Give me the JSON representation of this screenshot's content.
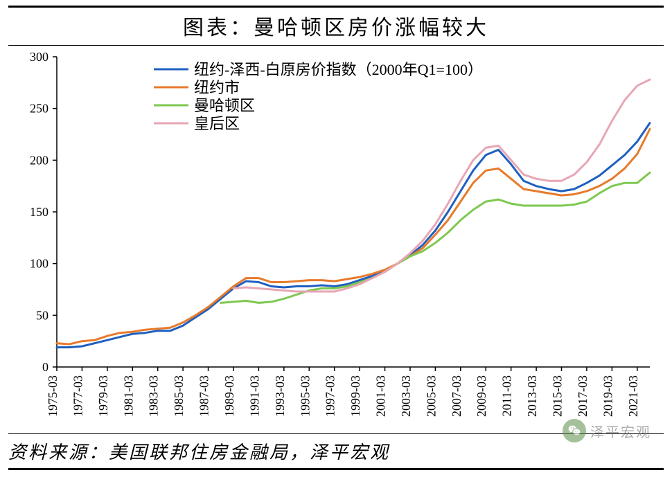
{
  "title": "图表：曼哈顿区房价涨幅较大",
  "source": "资料来源：美国联邦住房金融局，泽平宏观",
  "watermark": "泽平宏观",
  "chart": {
    "type": "line",
    "background_color": "#ffffff",
    "axis_color": "#000000",
    "tick_font_size": 18,
    "title_fontsize": 30,
    "source_fontsize": 26,
    "line_width": 3,
    "y": {
      "min": 0,
      "max": 300,
      "step": 50,
      "label_color": "#000000"
    },
    "x": {
      "labels": [
        "1975-03",
        "1977-03",
        "1979-03",
        "1981-03",
        "1983-03",
        "1985-03",
        "1987-03",
        "1989-03",
        "1991-03",
        "1993-03",
        "1995-03",
        "1997-03",
        "1999-03",
        "2001-03",
        "2003-03",
        "2005-03",
        "2007-03",
        "2009-03",
        "2011-03",
        "2013-03",
        "2015-03",
        "2017-03",
        "2019-03",
        "2021-03"
      ],
      "rotation": -90
    },
    "legend": {
      "position": "top-inset",
      "font_size": 22,
      "swatch_w": 50,
      "swatch_h": 3,
      "text_color": "#000000"
    },
    "series": [
      {
        "name": "纽约-泽西-白原房价指数（2000年Q1=100）",
        "color": "#1f5fbf",
        "y": [
          19,
          19,
          20,
          23,
          26,
          29,
          32,
          33,
          35,
          35,
          40,
          48,
          56,
          66,
          76,
          83,
          82,
          78,
          77,
          78,
          78,
          79,
          78,
          80,
          84,
          88,
          93,
          100,
          108,
          118,
          132,
          150,
          170,
          190,
          205,
          210,
          196,
          180,
          175,
          172,
          170,
          172,
          178,
          185,
          195,
          205,
          218,
          236
        ]
      },
      {
        "name": "纽约市",
        "color": "#e77a2b",
        "y": [
          23,
          22,
          25,
          26,
          30,
          33,
          34,
          36,
          37,
          38,
          43,
          50,
          58,
          68,
          78,
          86,
          86,
          82,
          82,
          83,
          84,
          84,
          83,
          85,
          87,
          90,
          94,
          100,
          107,
          115,
          128,
          142,
          160,
          178,
          190,
          192,
          182,
          172,
          170,
          168,
          166,
          167,
          170,
          175,
          182,
          192,
          206,
          230
        ]
      },
      {
        "name": "曼哈顿区",
        "color": "#7ec850",
        "y": [
          null,
          null,
          null,
          null,
          null,
          null,
          null,
          null,
          null,
          null,
          null,
          null,
          null,
          62,
          63,
          64,
          62,
          63,
          66,
          70,
          74,
          76,
          76,
          78,
          82,
          86,
          92,
          100,
          107,
          112,
          120,
          130,
          142,
          152,
          160,
          162,
          158,
          156,
          156,
          156,
          156,
          157,
          160,
          168,
          175,
          178,
          178,
          188
        ]
      },
      {
        "name": "皇后区",
        "color": "#e7a6b4",
        "y": [
          null,
          null,
          null,
          null,
          null,
          null,
          null,
          null,
          null,
          null,
          null,
          null,
          null,
          null,
          76,
          77,
          76,
          75,
          74,
          73,
          73,
          73,
          73,
          76,
          80,
          86,
          92,
          100,
          110,
          122,
          138,
          158,
          180,
          200,
          212,
          214,
          200,
          186,
          182,
          180,
          180,
          186,
          198,
          215,
          238,
          258,
          272,
          278
        ]
      }
    ]
  }
}
